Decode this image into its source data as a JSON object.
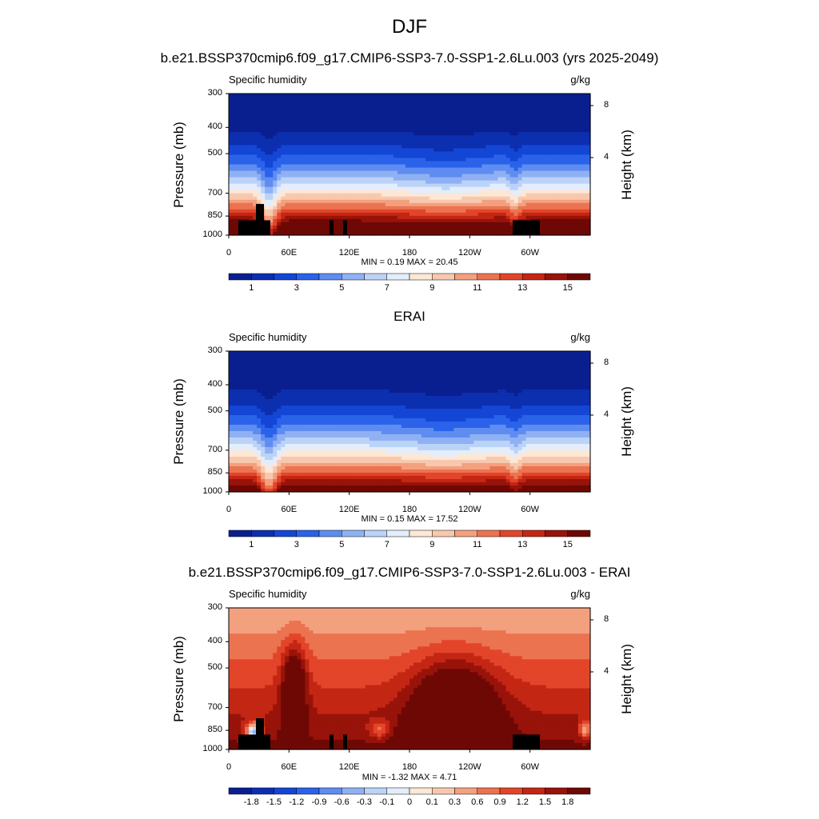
{
  "title": "DJF",
  "chart_data": [
    {
      "type": "heatmap",
      "title": "b.e21.BSSP370cmip6.f09_g17.CMIP6-SSP3-7.0-SSP1-2.6Lu.003 (yrs 2025-2049)",
      "left_label": "Specific humidity",
      "units": "g/kg",
      "ylabel": "Pressure (mb)",
      "ylabel_right": "Height (km)",
      "x_ticks": [
        "0",
        "60E",
        "120E",
        "180",
        "120W",
        "60W"
      ],
      "y_ticks": [
        "300",
        "400",
        "500",
        "700",
        "850",
        "1000"
      ],
      "height_ticks": [
        "8",
        "4"
      ],
      "stats": "MIN =  0.19  MAX =  20.45",
      "min": 0.19,
      "max": 20.45,
      "colorbar_labels": [
        "1",
        "3",
        "5",
        "7",
        "9",
        "11",
        "13",
        "15"
      ],
      "colorbar_colors": [
        "#0a1f8f",
        "#0c2fb0",
        "#1446d6",
        "#2b62ea",
        "#5e8cf0",
        "#8fb1f4",
        "#bcd3f8",
        "#e3edfb",
        "#fde7d5",
        "#f8c8ae",
        "#f3a07f",
        "#ec7350",
        "#e2452a",
        "#c42614",
        "#98130a",
        "#6e0804"
      ]
    },
    {
      "type": "heatmap",
      "title": "ERAI",
      "left_label": "Specific humidity",
      "units": "g/kg",
      "ylabel": "Pressure (mb)",
      "ylabel_right": "Height (km)",
      "x_ticks": [
        "0",
        "60E",
        "120E",
        "180",
        "120W",
        "60W"
      ],
      "y_ticks": [
        "300",
        "400",
        "500",
        "700",
        "850",
        "1000"
      ],
      "height_ticks": [
        "8",
        "4"
      ],
      "stats": "MIN =  0.15  MAX =  17.52",
      "min": 0.15,
      "max": 17.52,
      "colorbar_labels": [
        "1",
        "3",
        "5",
        "7",
        "9",
        "11",
        "13",
        "15"
      ],
      "colorbar_colors": [
        "#0a1f8f",
        "#0c2fb0",
        "#1446d6",
        "#2b62ea",
        "#5e8cf0",
        "#8fb1f4",
        "#bcd3f8",
        "#e3edfb",
        "#fde7d5",
        "#f8c8ae",
        "#f3a07f",
        "#ec7350",
        "#e2452a",
        "#c42614",
        "#98130a",
        "#6e0804"
      ]
    },
    {
      "type": "heatmap",
      "title": "b.e21.BSSP370cmip6.f09_g17.CMIP6-SSP3-7.0-SSP1-2.6Lu.003 - ERAI",
      "left_label": "Specific humidity",
      "units": "g/kg",
      "ylabel": "Pressure (mb)",
      "ylabel_right": "Height (km)",
      "x_ticks": [
        "0",
        "60E",
        "120E",
        "180",
        "120W",
        "60W"
      ],
      "y_ticks": [
        "300",
        "400",
        "500",
        "700",
        "850",
        "1000"
      ],
      "height_ticks": [
        "8",
        "4"
      ],
      "stats": "MIN = -1.32  MAX =  4.71",
      "min": -1.32,
      "max": 4.71,
      "colorbar_labels": [
        "-1.8",
        "-1.5",
        "-1.2",
        "-0.9",
        "-0.6",
        "-0.3",
        "-0.1",
        "0",
        "0.1",
        "0.3",
        "0.6",
        "0.9",
        "1.2",
        "1.5",
        "1.8"
      ],
      "colorbar_colors": [
        "#0a1f8f",
        "#0c2fb0",
        "#1446d6",
        "#2b62ea",
        "#5e8cf0",
        "#8fb1f4",
        "#bcd3f8",
        "#e3edfb",
        "#fde7d5",
        "#f8c8ae",
        "#f3a07f",
        "#ec7350",
        "#e2452a",
        "#c42614",
        "#98130a",
        "#6e0804"
      ]
    }
  ]
}
